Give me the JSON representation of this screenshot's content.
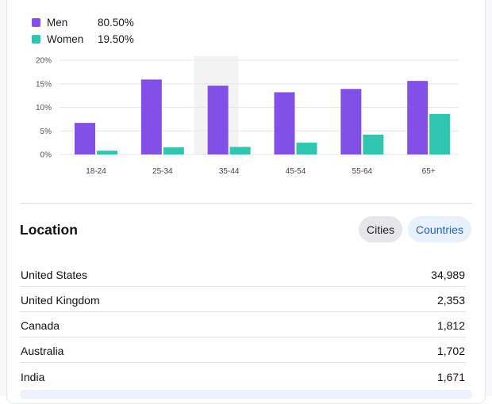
{
  "colors": {
    "men": "#8250e6",
    "women": "#2fc5b0",
    "hover_band": "#f3f3f4"
  },
  "legend": [
    {
      "label": "Men",
      "value": "80.50%"
    },
    {
      "label": "Women",
      "value": "19.50%"
    }
  ],
  "chart_data": {
    "type": "bar",
    "categories": [
      "18-24",
      "25-34",
      "35-44",
      "45-54",
      "55-64",
      "65+"
    ],
    "series": [
      {
        "name": "Men",
        "values": [
          6.7,
          15.9,
          14.6,
          13.2,
          13.9,
          15.6
        ]
      },
      {
        "name": "Women",
        "values": [
          0.8,
          1.5,
          1.6,
          2.5,
          4.2,
          8.6
        ]
      }
    ],
    "yticks": [
      "0%",
      "5%",
      "10%",
      "15%",
      "20%"
    ],
    "ylim": [
      0,
      20
    ],
    "grid": true,
    "highlighted_category": "35-44"
  },
  "location": {
    "title": "Location",
    "tabs": {
      "cities": "Cities",
      "countries": "Countries"
    },
    "rows": [
      {
        "name": "United States",
        "value": "34,989"
      },
      {
        "name": "United Kingdom",
        "value": "2,353"
      },
      {
        "name": "Canada",
        "value": "1,812"
      },
      {
        "name": "Australia",
        "value": "1,702"
      },
      {
        "name": "India",
        "value": "1,671"
      }
    ]
  }
}
